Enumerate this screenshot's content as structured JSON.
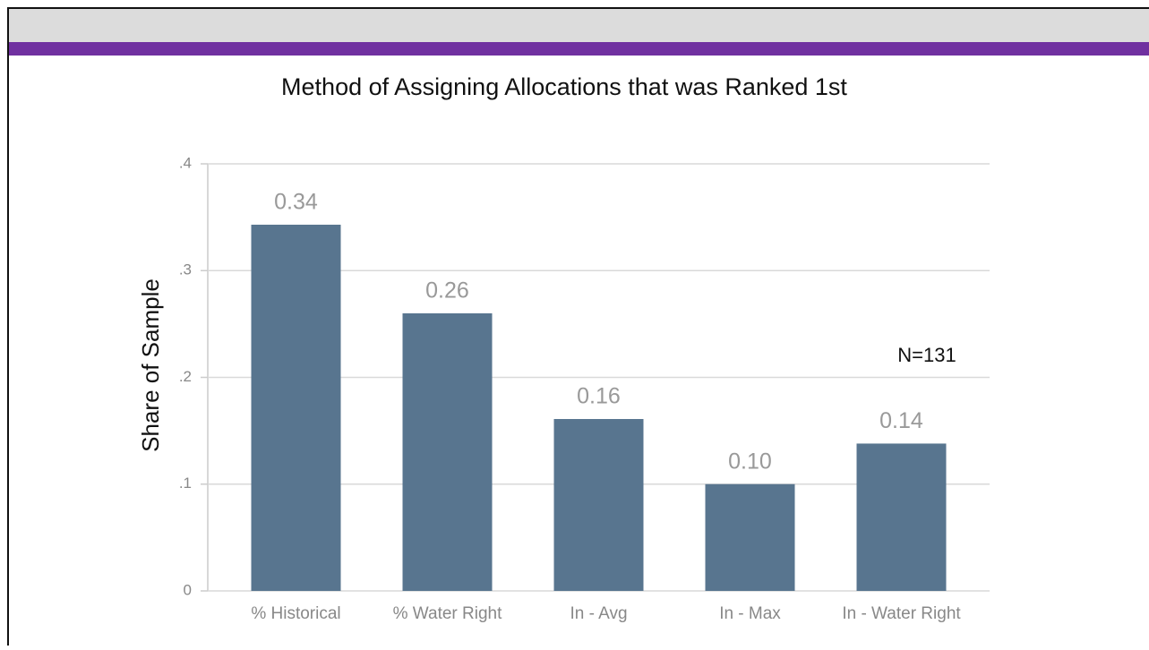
{
  "chart_data": {
    "type": "bar",
    "title": "Method of Assigning Allocations that was Ranked 1st",
    "y_label": "Share of Sample",
    "annotation": "N=131",
    "categories": [
      "% Historical",
      "% Water Right",
      "In - Avg",
      "In - Max",
      "In - Water Right"
    ],
    "values": [
      0.343,
      0.26,
      0.161,
      0.1,
      0.138
    ],
    "value_labels": [
      "0.34",
      "0.26",
      "0.16",
      "0.10",
      "0.14"
    ],
    "color": "#58758f",
    "ylim": [
      0,
      0.4
    ],
    "yticks": [
      0,
      {
        "value": 0.1,
        "label": ".1"
      },
      {
        "value": 0.2,
        "label": ".2"
      },
      {
        "value": 0.3,
        "label": ".3"
      },
      {
        "value": 0.4,
        "label": ".4"
      }
    ],
    "grid": true
  }
}
